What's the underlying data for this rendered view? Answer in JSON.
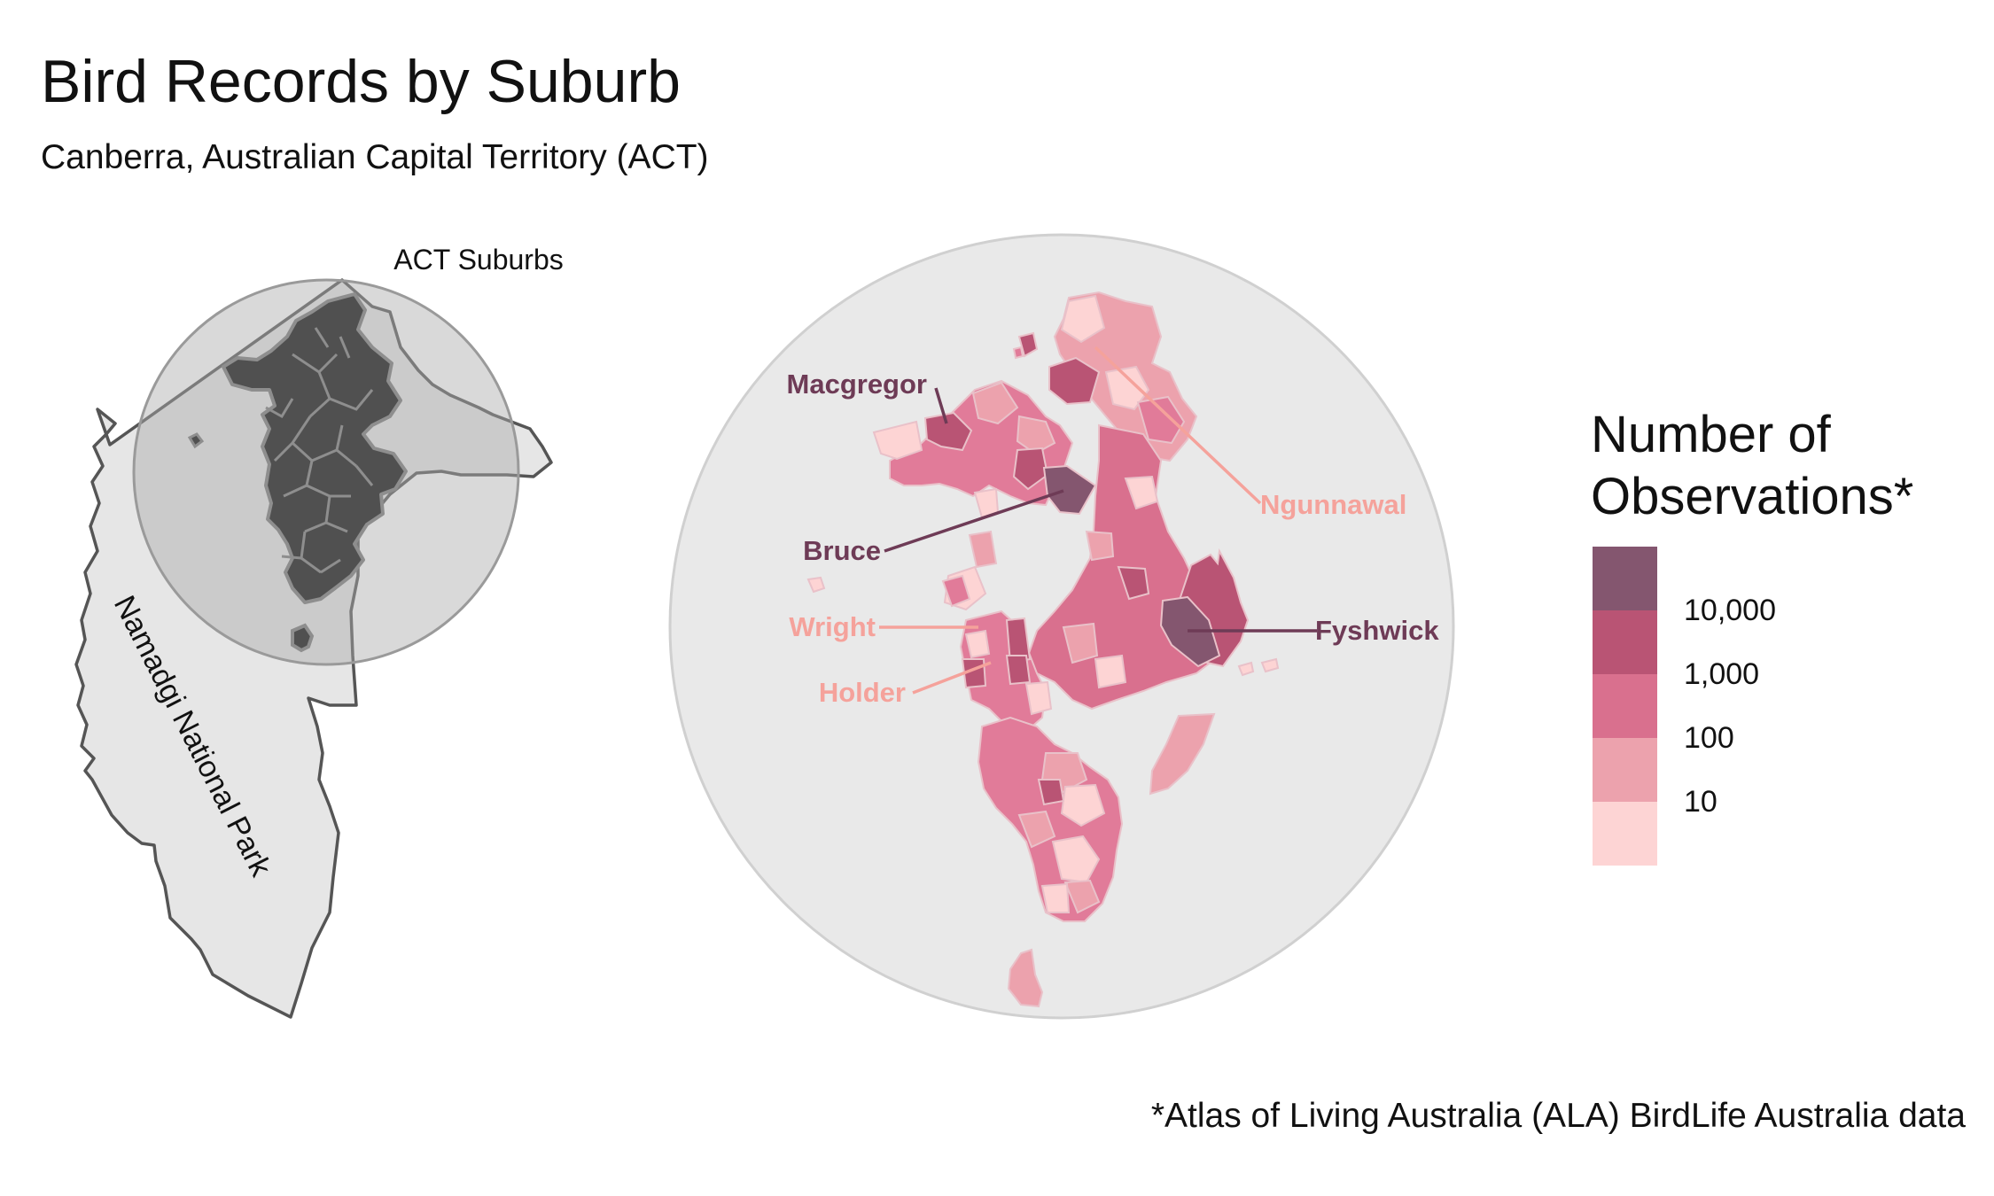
{
  "title": "Bird Records by Suburb",
  "subtitle": "Canberra, Australian Capital Territory (ACT)",
  "caption": "*Atlas of Living Australia (ALA) BirdLife Australia data",
  "inset": {
    "circle_label": "ACT Suburbs",
    "park_label": "Namadgi National Park"
  },
  "legend": {
    "title_lines": [
      "Number of",
      "Observations*"
    ],
    "keys": [
      {
        "color": "#84566f"
      },
      {
        "color": "#b95474"
      },
      {
        "color": "#d9708e"
      },
      {
        "color": "#eca2ad"
      },
      {
        "color": "#fdd4d4"
      }
    ],
    "labels": [
      "10,000",
      "1,000",
      "100",
      "10"
    ]
  },
  "labels": {
    "macgregor": "Macgregor",
    "bruce": "Bruce",
    "wright": "Wright",
    "holder": "Holder",
    "ngunnawal": "Ngunnawal",
    "fyshwick": "Fyshwick"
  },
  "colors": {
    "dark_label": "#6e3b56",
    "light_label": "#f5a29b",
    "circle_fill": "#e9e9e9"
  }
}
